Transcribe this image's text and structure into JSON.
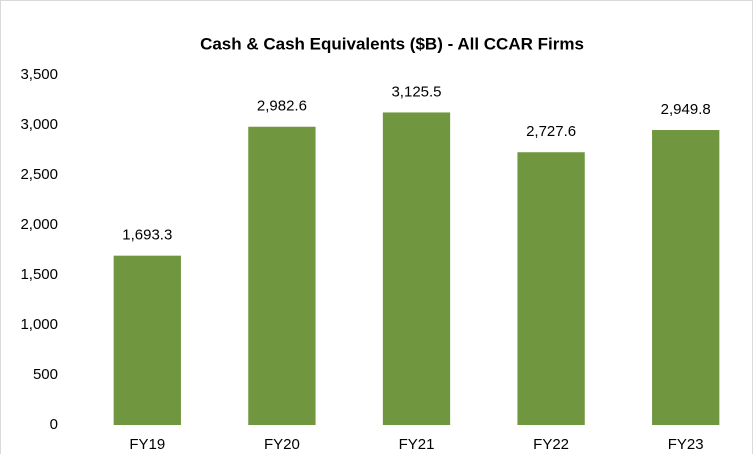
{
  "chart_data": {
    "type": "bar",
    "title": "Cash & Cash Equivalents ($B) - All CCAR Firms",
    "categories": [
      "FY19",
      "FY20",
      "FY21",
      "FY22",
      "FY23"
    ],
    "values": [
      1693.3,
      2982.6,
      3125.5,
      2727.6,
      2949.8
    ],
    "value_labels": [
      "1,693.3",
      "2,982.6",
      "3,125.5",
      "2,727.6",
      "2,949.8"
    ],
    "color": "#70963f",
    "ylim": [
      0,
      3500
    ],
    "yticks": [
      0,
      500,
      {
        "value": 1000,
        "label": "1,000"
      },
      {
        "value": 1500,
        "label": "1,500"
      },
      {
        "value": 2000,
        "label": "2,000"
      },
      {
        "value": 2500,
        "label": "2,500"
      },
      {
        "value": 3000,
        "label": "3,000"
      },
      {
        "value": 3500,
        "label": "3,500"
      }
    ],
    "grid": false
  }
}
